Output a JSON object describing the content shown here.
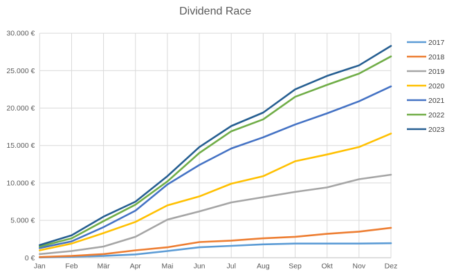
{
  "chart_data": {
    "type": "line",
    "title": "Dividend Race",
    "x_categories": [
      "Jan",
      "Feb",
      "Mär",
      "Apr",
      "Mai",
      "Jun",
      "Jul",
      "Aug",
      "Sep",
      "Okt",
      "Nov",
      "Dez"
    ],
    "y_ticks": [
      0,
      5000,
      10000,
      15000,
      20000,
      25000,
      30000
    ],
    "y_tick_labels": [
      "0 €",
      "5.000 €",
      "10.000 €",
      "15.000 €",
      "20.000 €",
      "25.000 €",
      "30.000 €"
    ],
    "ylim": [
      0,
      30000
    ],
    "grid": true,
    "legend_position": "right",
    "colors": {
      "title_text": "#595959",
      "axis_text": "#595959",
      "legend_text": "#404040",
      "gridline": "#D9D9D9",
      "axis_line": "#BFBFBF",
      "background": "#FFFFFF"
    },
    "series": [
      {
        "name": "2017",
        "color": "#5B9BD5",
        "values": [
          50,
          150,
          250,
          450,
          900,
          1400,
          1600,
          1800,
          1900,
          1900,
          1900,
          1950
        ]
      },
      {
        "name": "2018",
        "color": "#ED7D31",
        "values": [
          100,
          250,
          500,
          1000,
          1400,
          2100,
          2300,
          2600,
          2800,
          3200,
          3500,
          4000
        ]
      },
      {
        "name": "2019",
        "color": "#A5A5A5",
        "values": [
          500,
          900,
          1500,
          2800,
          5100,
          6200,
          7400,
          8100,
          8800,
          9400,
          10500,
          11100
        ]
      },
      {
        "name": "2020",
        "color": "#FFC000",
        "values": [
          1000,
          1900,
          3300,
          4800,
          7000,
          8200,
          9900,
          10900,
          12900,
          13800,
          14800,
          16600
        ]
      },
      {
        "name": "2021",
        "color": "#4472C4",
        "values": [
          1300,
          2200,
          4100,
          6300,
          9800,
          12400,
          14600,
          16100,
          17800,
          19300,
          20900,
          22900
        ]
      },
      {
        "name": "2022",
        "color": "#70AD47",
        "values": [
          1500,
          2600,
          4900,
          7100,
          10200,
          14000,
          16900,
          18500,
          21500,
          23100,
          24600,
          26900
        ]
      },
      {
        "name": "2023",
        "color": "#255E91",
        "values": [
          1700,
          3000,
          5500,
          7500,
          10900,
          14800,
          17600,
          19400,
          22500,
          24300,
          25700,
          28300
        ]
      }
    ]
  }
}
